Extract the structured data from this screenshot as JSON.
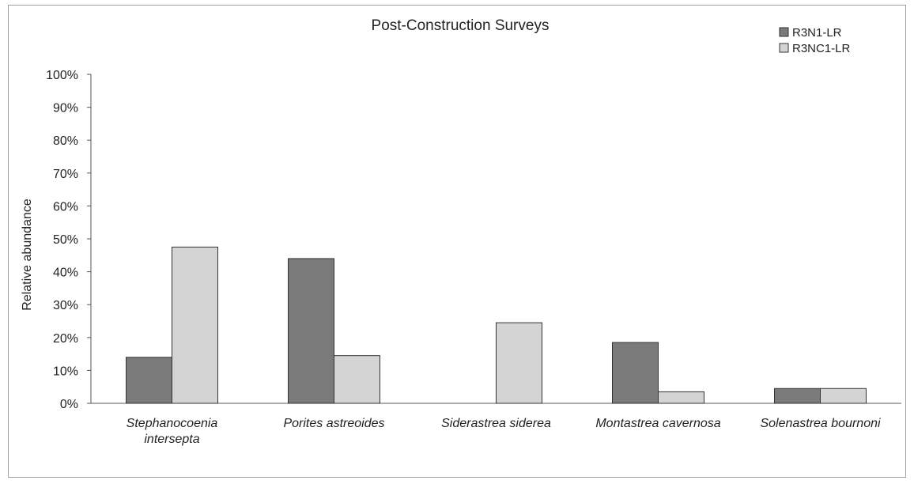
{
  "chart_data": {
    "type": "bar",
    "title": "Post-Construction Surveys",
    "xlabel": "",
    "ylabel": "Relative abundance",
    "ylim": [
      0,
      100
    ],
    "yticks": [
      "0%",
      "10%",
      "20%",
      "30%",
      "40%",
      "50%",
      "60%",
      "70%",
      "80%",
      "90%",
      "100%"
    ],
    "categories": [
      [
        "Stephanocoenia",
        "intersepta"
      ],
      [
        "Porites astreoides"
      ],
      [
        "Siderastrea siderea"
      ],
      [
        "Montastrea cavernosa"
      ],
      [
        "Solenastrea bournoni"
      ]
    ],
    "series": [
      {
        "name": "R3N1-LR",
        "color": "#7a7a7a",
        "values": [
          14,
          44,
          0,
          18.5,
          4.5
        ]
      },
      {
        "name": "R3NC1-LR",
        "color": "#d4d4d4",
        "values": [
          47.5,
          14.5,
          24.5,
          3.5,
          4.5
        ]
      }
    ],
    "legend_position": "top-right",
    "grid": false
  }
}
